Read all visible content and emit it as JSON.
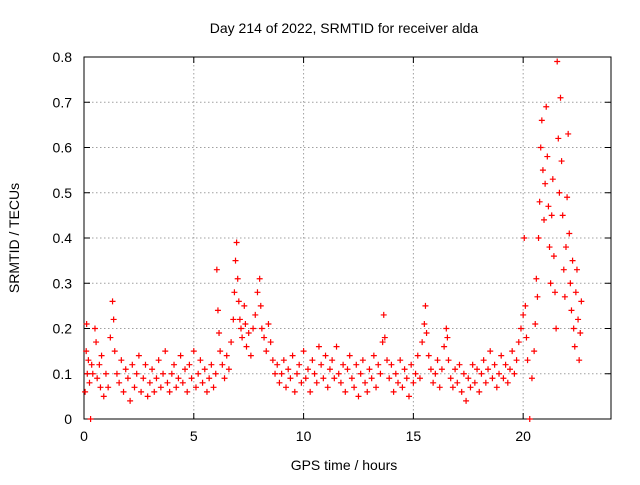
{
  "chart_data": {
    "type": "scatter",
    "title": "Day 214 of 2022, SRMTID for receiver alda",
    "xlabel": "GPS time / hours",
    "ylabel": "SRMTID / TECUs",
    "xlim": [
      0,
      24
    ],
    "ylim": [
      0,
      0.8
    ],
    "grid": true,
    "x_ticks": [
      0,
      5,
      10,
      15,
      20
    ],
    "x_tick_labels": [
      "0",
      "5",
      "10",
      "15",
      "20"
    ],
    "y_ticks": [
      0,
      0.1,
      0.2,
      0.3,
      0.4,
      0.5,
      0.6,
      0.7,
      0.8
    ],
    "y_tick_labels": [
      "0",
      "0.1",
      "0.2",
      "0.3",
      "0.4",
      "0.5",
      "0.6",
      "0.7",
      "0.8"
    ],
    "marker": "plus",
    "color": "#ff0000",
    "series": [
      {
        "name": "SRMTID",
        "points": [
          [
            0.05,
            0.06
          ],
          [
            0.1,
            0.15
          ],
          [
            0.12,
            0.21
          ],
          [
            0.15,
            0.1
          ],
          [
            0.2,
            0.13
          ],
          [
            0.25,
            0.08
          ],
          [
            0.3,
            0.0
          ],
          [
            0.35,
            0.12
          ],
          [
            0.4,
            0.1
          ],
          [
            0.5,
            0.2
          ],
          [
            0.55,
            0.17
          ],
          [
            0.6,
            0.09
          ],
          [
            0.7,
            0.12
          ],
          [
            0.75,
            0.07
          ],
          [
            0.8,
            0.14
          ],
          [
            0.9,
            0.05
          ],
          [
            1.0,
            0.1
          ],
          [
            1.1,
            0.07
          ],
          [
            1.2,
            0.18
          ],
          [
            1.3,
            0.26
          ],
          [
            1.35,
            0.22
          ],
          [
            1.4,
            0.15
          ],
          [
            1.5,
            0.1
          ],
          [
            1.6,
            0.08
          ],
          [
            1.7,
            0.13
          ],
          [
            1.8,
            0.06
          ],
          [
            1.9,
            0.11
          ],
          [
            2.0,
            0.09
          ],
          [
            2.1,
            0.04
          ],
          [
            2.2,
            0.12
          ],
          [
            2.3,
            0.07
          ],
          [
            2.4,
            0.1
          ],
          [
            2.5,
            0.14
          ],
          [
            2.6,
            0.06
          ],
          [
            2.7,
            0.09
          ],
          [
            2.8,
            0.12
          ],
          [
            2.9,
            0.05
          ],
          [
            3.0,
            0.08
          ],
          [
            3.1,
            0.11
          ],
          [
            3.2,
            0.06
          ],
          [
            3.3,
            0.09
          ],
          [
            3.4,
            0.13
          ],
          [
            3.5,
            0.07
          ],
          [
            3.6,
            0.1
          ],
          [
            3.7,
            0.15
          ],
          [
            3.8,
            0.08
          ],
          [
            3.9,
            0.06
          ],
          [
            4.0,
            0.1
          ],
          [
            4.1,
            0.12
          ],
          [
            4.2,
            0.07
          ],
          [
            4.3,
            0.09
          ],
          [
            4.4,
            0.14
          ],
          [
            4.5,
            0.08
          ],
          [
            4.6,
            0.11
          ],
          [
            4.7,
            0.06
          ],
          [
            4.8,
            0.12
          ],
          [
            4.9,
            0.09
          ],
          [
            5.0,
            0.15
          ],
          [
            5.1,
            0.07
          ],
          [
            5.2,
            0.1
          ],
          [
            5.3,
            0.13
          ],
          [
            5.4,
            0.08
          ],
          [
            5.5,
            0.11
          ],
          [
            5.6,
            0.06
          ],
          [
            5.7,
            0.09
          ],
          [
            5.8,
            0.12
          ],
          [
            5.9,
            0.07
          ],
          [
            6.0,
            0.1
          ],
          [
            6.05,
            0.33
          ],
          [
            6.1,
            0.24
          ],
          [
            6.15,
            0.19
          ],
          [
            6.2,
            0.15
          ],
          [
            6.3,
            0.12
          ],
          [
            6.4,
            0.09
          ],
          [
            6.5,
            0.14
          ],
          [
            6.6,
            0.11
          ],
          [
            6.7,
            0.17
          ],
          [
            6.8,
            0.22
          ],
          [
            6.85,
            0.28
          ],
          [
            6.9,
            0.35
          ],
          [
            6.95,
            0.39
          ],
          [
            7.0,
            0.31
          ],
          [
            7.05,
            0.26
          ],
          [
            7.1,
            0.22
          ],
          [
            7.15,
            0.2
          ],
          [
            7.2,
            0.18
          ],
          [
            7.3,
            0.25
          ],
          [
            7.35,
            0.21
          ],
          [
            7.4,
            0.16
          ],
          [
            7.5,
            0.19
          ],
          [
            7.6,
            0.14
          ],
          [
            7.7,
            0.2
          ],
          [
            7.8,
            0.23
          ],
          [
            7.9,
            0.28
          ],
          [
            8.0,
            0.31
          ],
          [
            8.05,
            0.25
          ],
          [
            8.1,
            0.2
          ],
          [
            8.2,
            0.18
          ],
          [
            8.3,
            0.15
          ],
          [
            8.4,
            0.21
          ],
          [
            8.5,
            0.17
          ],
          [
            8.6,
            0.13
          ],
          [
            8.7,
            0.1
          ],
          [
            8.8,
            0.12
          ],
          [
            8.9,
            0.08
          ],
          [
            9.0,
            0.1
          ],
          [
            9.1,
            0.13
          ],
          [
            9.2,
            0.07
          ],
          [
            9.3,
            0.11
          ],
          [
            9.4,
            0.09
          ],
          [
            9.5,
            0.14
          ],
          [
            9.6,
            0.06
          ],
          [
            9.7,
            0.1
          ],
          [
            9.8,
            0.12
          ],
          [
            9.9,
            0.08
          ],
          [
            10.0,
            0.15
          ],
          [
            10.1,
            0.09
          ],
          [
            10.2,
            0.11
          ],
          [
            10.3,
            0.06
          ],
          [
            10.4,
            0.13
          ],
          [
            10.5,
            0.1
          ],
          [
            10.6,
            0.08
          ],
          [
            10.7,
            0.16
          ],
          [
            10.8,
            0.12
          ],
          [
            10.9,
            0.09
          ],
          [
            11.0,
            0.14
          ],
          [
            11.1,
            0.07
          ],
          [
            11.2,
            0.11
          ],
          [
            11.3,
            0.13
          ],
          [
            11.4,
            0.09
          ],
          [
            11.5,
            0.16
          ],
          [
            11.6,
            0.1
          ],
          [
            11.7,
            0.08
          ],
          [
            11.8,
            0.12
          ],
          [
            11.9,
            0.06
          ],
          [
            12.0,
            0.11
          ],
          [
            12.1,
            0.14
          ],
          [
            12.2,
            0.09
          ],
          [
            12.3,
            0.07
          ],
          [
            12.4,
            0.12
          ],
          [
            12.5,
            0.05
          ],
          [
            12.6,
            0.1
          ],
          [
            12.7,
            0.13
          ],
          [
            12.8,
            0.08
          ],
          [
            12.9,
            0.06
          ],
          [
            13.0,
            0.11
          ],
          [
            13.1,
            0.09
          ],
          [
            13.2,
            0.14
          ],
          [
            13.3,
            0.07
          ],
          [
            13.4,
            0.12
          ],
          [
            13.5,
            0.1
          ],
          [
            13.6,
            0.17
          ],
          [
            13.65,
            0.23
          ],
          [
            13.7,
            0.18
          ],
          [
            13.8,
            0.13
          ],
          [
            13.9,
            0.09
          ],
          [
            14.0,
            0.12
          ],
          [
            14.1,
            0.06
          ],
          [
            14.2,
            0.1
          ],
          [
            14.3,
            0.08
          ],
          [
            14.4,
            0.13
          ],
          [
            14.5,
            0.07
          ],
          [
            14.6,
            0.11
          ],
          [
            14.7,
            0.09
          ],
          [
            14.8,
            0.05
          ],
          [
            14.9,
            0.12
          ],
          [
            15.0,
            0.08
          ],
          [
            15.1,
            0.1
          ],
          [
            15.2,
            0.14
          ],
          [
            15.3,
            0.09
          ],
          [
            15.4,
            0.17
          ],
          [
            15.5,
            0.21
          ],
          [
            15.55,
            0.25
          ],
          [
            15.6,
            0.19
          ],
          [
            15.7,
            0.14
          ],
          [
            15.8,
            0.11
          ],
          [
            15.9,
            0.08
          ],
          [
            16.0,
            0.1
          ],
          [
            16.1,
            0.13
          ],
          [
            16.2,
            0.07
          ],
          [
            16.3,
            0.11
          ],
          [
            16.4,
            0.16
          ],
          [
            16.5,
            0.2
          ],
          [
            16.55,
            0.18
          ],
          [
            16.6,
            0.13
          ],
          [
            16.7,
            0.09
          ],
          [
            16.8,
            0.07
          ],
          [
            16.9,
            0.11
          ],
          [
            17.0,
            0.08
          ],
          [
            17.1,
            0.12
          ],
          [
            17.2,
            0.06
          ],
          [
            17.3,
            0.1
          ],
          [
            17.4,
            0.04
          ],
          [
            17.5,
            0.09
          ],
          [
            17.6,
            0.07
          ],
          [
            17.7,
            0.12
          ],
          [
            17.8,
            0.08
          ],
          [
            17.9,
            0.11
          ],
          [
            18.0,
            0.06
          ],
          [
            18.1,
            0.1
          ],
          [
            18.2,
            0.13
          ],
          [
            18.3,
            0.08
          ],
          [
            18.4,
            0.11
          ],
          [
            18.5,
            0.15
          ],
          [
            18.6,
            0.09
          ],
          [
            18.7,
            0.12
          ],
          [
            18.8,
            0.07
          ],
          [
            18.9,
            0.1
          ],
          [
            19.0,
            0.14
          ],
          [
            19.1,
            0.09
          ],
          [
            19.2,
            0.12
          ],
          [
            19.3,
            0.08
          ],
          [
            19.4,
            0.11
          ],
          [
            19.5,
            0.15
          ],
          [
            19.6,
            0.1
          ],
          [
            19.7,
            0.13
          ],
          [
            19.8,
            0.17
          ],
          [
            19.9,
            0.2
          ],
          [
            20.0,
            0.23
          ],
          [
            20.05,
            0.4
          ],
          [
            20.1,
            0.25
          ],
          [
            20.15,
            0.18
          ],
          [
            20.2,
            0.13
          ],
          [
            20.3,
            0.0
          ],
          [
            20.4,
            0.09
          ],
          [
            20.5,
            0.15
          ],
          [
            20.55,
            0.21
          ],
          [
            20.6,
            0.31
          ],
          [
            20.65,
            0.27
          ],
          [
            20.7,
            0.4
          ],
          [
            20.75,
            0.48
          ],
          [
            20.8,
            0.6
          ],
          [
            20.85,
            0.66
          ],
          [
            20.9,
            0.55
          ],
          [
            20.95,
            0.44
          ],
          [
            21.0,
            0.52
          ],
          [
            21.05,
            0.69
          ],
          [
            21.1,
            0.58
          ],
          [
            21.15,
            0.47
          ],
          [
            21.2,
            0.38
          ],
          [
            21.25,
            0.3
          ],
          [
            21.3,
            0.45
          ],
          [
            21.35,
            0.53
          ],
          [
            21.4,
            0.36
          ],
          [
            21.45,
            0.28
          ],
          [
            21.5,
            0.2
          ],
          [
            21.55,
            0.79
          ],
          [
            21.6,
            0.62
          ],
          [
            21.65,
            0.5
          ],
          [
            21.7,
            0.71
          ],
          [
            21.75,
            0.57
          ],
          [
            21.8,
            0.45
          ],
          [
            21.85,
            0.33
          ],
          [
            21.9,
            0.27
          ],
          [
            21.95,
            0.38
          ],
          [
            22.0,
            0.49
          ],
          [
            22.05,
            0.63
          ],
          [
            22.1,
            0.41
          ],
          [
            22.15,
            0.3
          ],
          [
            22.2,
            0.24
          ],
          [
            22.25,
            0.35
          ],
          [
            22.3,
            0.2
          ],
          [
            22.35,
            0.16
          ],
          [
            22.4,
            0.28
          ],
          [
            22.45,
            0.33
          ],
          [
            22.5,
            0.22
          ],
          [
            22.55,
            0.13
          ],
          [
            22.6,
            0.19
          ],
          [
            22.65,
            0.26
          ]
        ]
      }
    ]
  }
}
